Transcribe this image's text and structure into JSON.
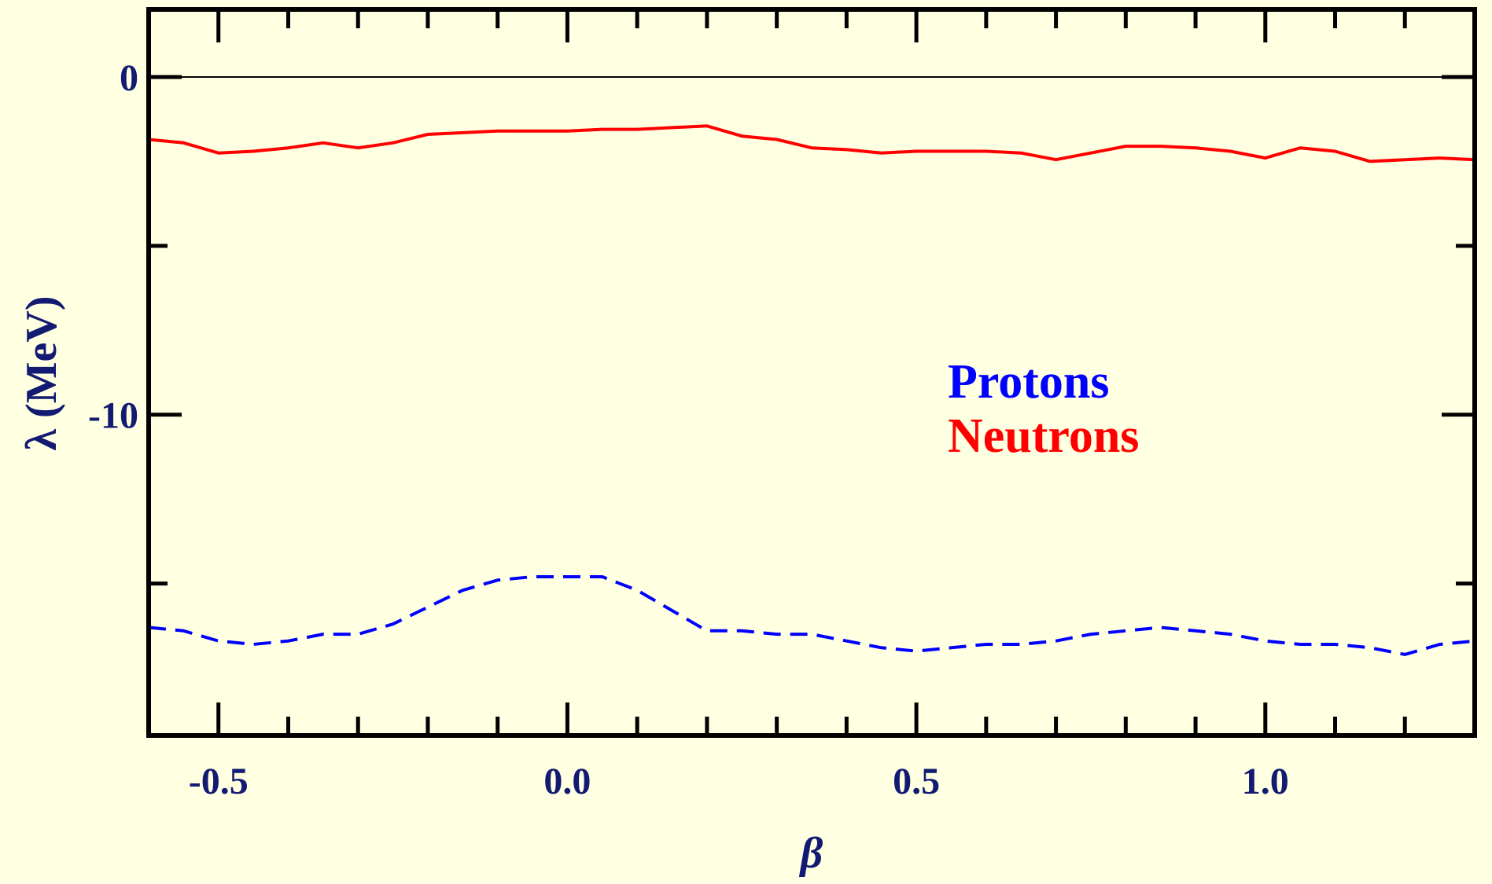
{
  "chart_data": {
    "type": "line",
    "xlabel": "β",
    "ylabel": "λ (MeV)",
    "xlim": [
      -0.6,
      1.3
    ],
    "ylim": [
      -19.5,
      2.0
    ],
    "x_ticks": [
      {
        "value": -0.5,
        "label": "-0.5"
      },
      {
        "value": 0.0,
        "label": "0.0"
      },
      {
        "value": 0.5,
        "label": "0.5"
      },
      {
        "value": 1.0,
        "label": "1.0"
      }
    ],
    "y_ticks": [
      {
        "value": 0,
        "label": "0"
      },
      {
        "value": -10,
        "label": "-10"
      }
    ],
    "x_minor_step": 0.1,
    "y_minor_step": 5,
    "zero_line": true,
    "series": [
      {
        "name": "Protons",
        "color": "#0000ff",
        "dash": true,
        "x": [
          -0.6,
          -0.55,
          -0.5,
          -0.45,
          -0.4,
          -0.35,
          -0.3,
          -0.25,
          -0.2,
          -0.15,
          -0.1,
          -0.05,
          0.0,
          0.05,
          0.1,
          0.15,
          0.2,
          0.25,
          0.3,
          0.35,
          0.4,
          0.45,
          0.5,
          0.55,
          0.6,
          0.65,
          0.7,
          0.75,
          0.8,
          0.85,
          0.9,
          0.95,
          1.0,
          1.05,
          1.1,
          1.15,
          1.2,
          1.25,
          1.3
        ],
        "y": [
          -16.3,
          -16.4,
          -16.7,
          -16.8,
          -16.7,
          -16.5,
          -16.5,
          -16.2,
          -15.7,
          -15.2,
          -14.9,
          -14.8,
          -14.8,
          -14.8,
          -15.2,
          -15.8,
          -16.4,
          -16.4,
          -16.5,
          -16.5,
          -16.7,
          -16.9,
          -17.0,
          -16.9,
          -16.8,
          -16.8,
          -16.7,
          -16.5,
          -16.4,
          -16.3,
          -16.4,
          -16.5,
          -16.7,
          -16.8,
          -16.8,
          -16.9,
          -17.1,
          -16.8,
          -16.7
        ]
      },
      {
        "name": "Neutrons",
        "color": "#ff0000",
        "dash": false,
        "x": [
          -0.6,
          -0.55,
          -0.5,
          -0.45,
          -0.4,
          -0.35,
          -0.3,
          -0.25,
          -0.2,
          -0.15,
          -0.1,
          -0.05,
          0.0,
          0.05,
          0.1,
          0.15,
          0.2,
          0.25,
          0.3,
          0.35,
          0.4,
          0.45,
          0.5,
          0.55,
          0.6,
          0.65,
          0.7,
          0.75,
          0.8,
          0.85,
          0.9,
          0.95,
          1.0,
          1.05,
          1.1,
          1.15,
          1.2,
          1.25,
          1.3
        ],
        "y": [
          -1.85,
          -1.95,
          -2.25,
          -2.2,
          -2.1,
          -1.95,
          -2.1,
          -1.95,
          -1.7,
          -1.65,
          -1.6,
          -1.6,
          -1.6,
          -1.55,
          -1.55,
          -1.5,
          -1.45,
          -1.75,
          -1.85,
          -2.1,
          -2.15,
          -2.25,
          -2.2,
          -2.2,
          -2.2,
          -2.25,
          -2.45,
          -2.25,
          -2.05,
          -2.05,
          -2.1,
          -2.2,
          -2.4,
          -2.1,
          -2.2,
          -2.5,
          -2.45,
          -2.4,
          -2.45
        ]
      }
    ],
    "legend": {
      "placement": "center-right",
      "entries": [
        {
          "label": "Protons",
          "color": "#0000ff"
        },
        {
          "label": "Neutrons",
          "color": "#ff0000"
        }
      ]
    },
    "colors": {
      "background": "#ffffe1",
      "axis": "#000000",
      "label": "#121a72"
    }
  }
}
